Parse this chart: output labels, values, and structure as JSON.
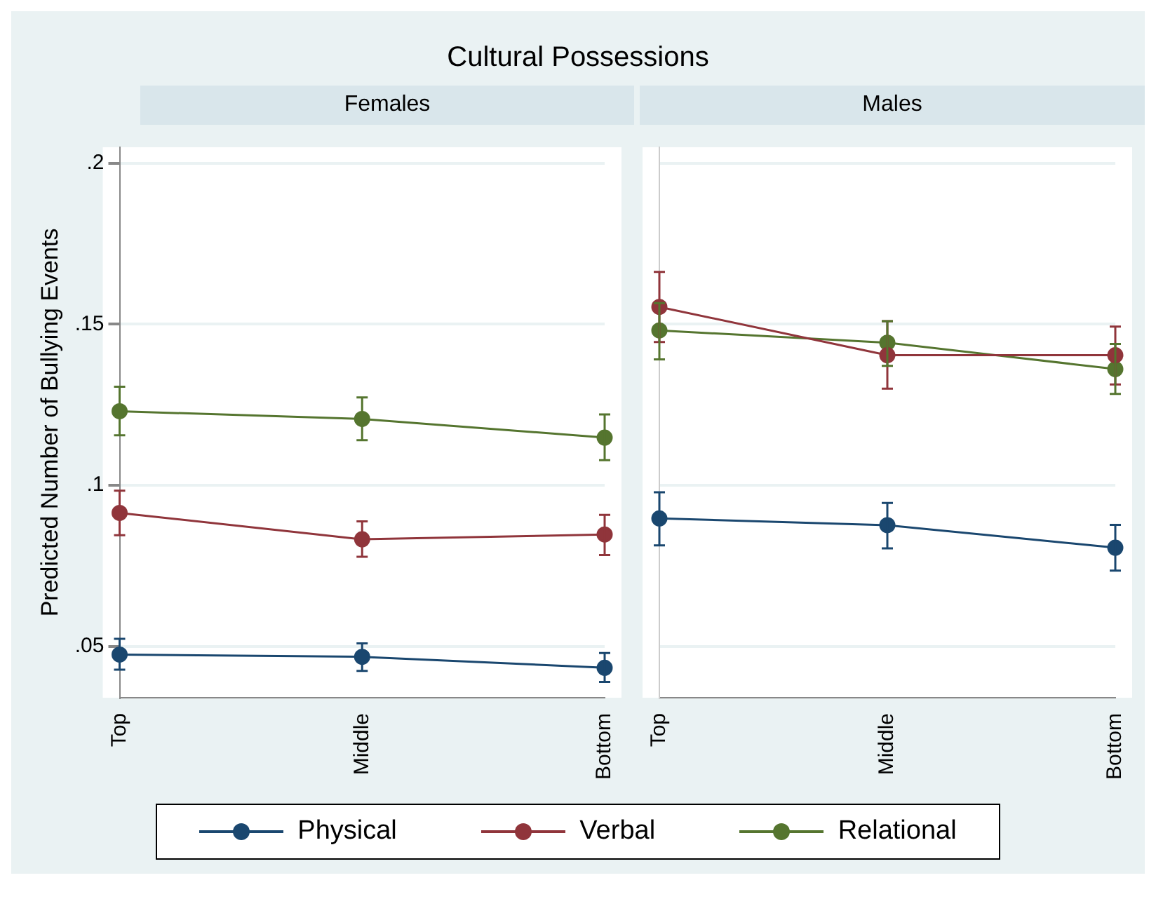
{
  "chart_data": [
    {
      "type": "line",
      "title": "Cultural Possessions",
      "subtitle": "Females",
      "ylabel": "Predicted Number of Bullying Events",
      "categories": [
        "Top",
        "Middle",
        "Bottom"
      ],
      "ylim": [
        0.034,
        0.205
      ],
      "yticks": [
        {
          "value": 0.05,
          "label": ".05"
        },
        {
          "value": 0.1,
          "label": ".1"
        },
        {
          "value": 0.15,
          "label": ".15"
        },
        {
          "value": 0.2,
          "label": ".2"
        }
      ],
      "grid": "y",
      "legend": "bottom",
      "marker": "circle",
      "line_style": "solid",
      "series": [
        {
          "name": "Physical",
          "color": "#1a476f",
          "values": [
            0.0474,
            0.0467,
            0.0433
          ],
          "errors": [
            [
              0.0427,
              0.0523
            ],
            [
              0.0423,
              0.0509
            ],
            [
              0.0389,
              0.0479
            ]
          ]
        },
        {
          "name": "Verbal",
          "color": "#90353b",
          "values": [
            0.0914,
            0.0832,
            0.0847
          ],
          "errors": [
            [
              0.0845,
              0.0983
            ],
            [
              0.0778,
              0.0888
            ],
            [
              0.0783,
              0.0908
            ]
          ]
        },
        {
          "name": "Relational",
          "color": "#55752f",
          "values": [
            0.123,
            0.1206,
            0.1148
          ],
          "errors": [
            [
              0.1155,
              0.1306
            ],
            [
              0.114,
              0.1273
            ],
            [
              0.1078,
              0.122
            ]
          ]
        }
      ]
    },
    {
      "type": "line",
      "subtitle": "Males",
      "categories": [
        "Top",
        "Middle",
        "Bottom"
      ],
      "ylim": [
        0.034,
        0.205
      ],
      "yticks": [
        {
          "value": 0.05,
          "label": null
        },
        {
          "value": 0.1,
          "label": null
        },
        {
          "value": 0.15,
          "label": null
        },
        {
          "value": 0.2,
          "label": null
        }
      ],
      "tick_labels": "x",
      "grid": "y",
      "marker": "circle",
      "line_style": "solid",
      "series": [
        {
          "color": "#1a476f",
          "values": [
            0.0897,
            0.0876,
            0.0806
          ],
          "errors": [
            [
              0.0813,
              0.0978
            ],
            [
              0.0804,
              0.0945
            ],
            [
              0.0735,
              0.0877
            ]
          ]
        },
        {
          "color": "#90353b",
          "values": [
            0.1554,
            0.1404,
            0.1404
          ],
          "errors": [
            [
              0.1445,
              0.1663
            ],
            [
              0.13,
              0.151
            ],
            [
              0.1313,
              0.1493
            ]
          ]
        },
        {
          "color": "#55752f",
          "values": [
            0.1481,
            0.1443,
            0.1361
          ],
          "errors": [
            [
              0.1391,
              0.1566
            ],
            [
              0.1371,
              0.151
            ],
            [
              0.1284,
              0.1439
            ]
          ]
        }
      ]
    }
  ]
}
